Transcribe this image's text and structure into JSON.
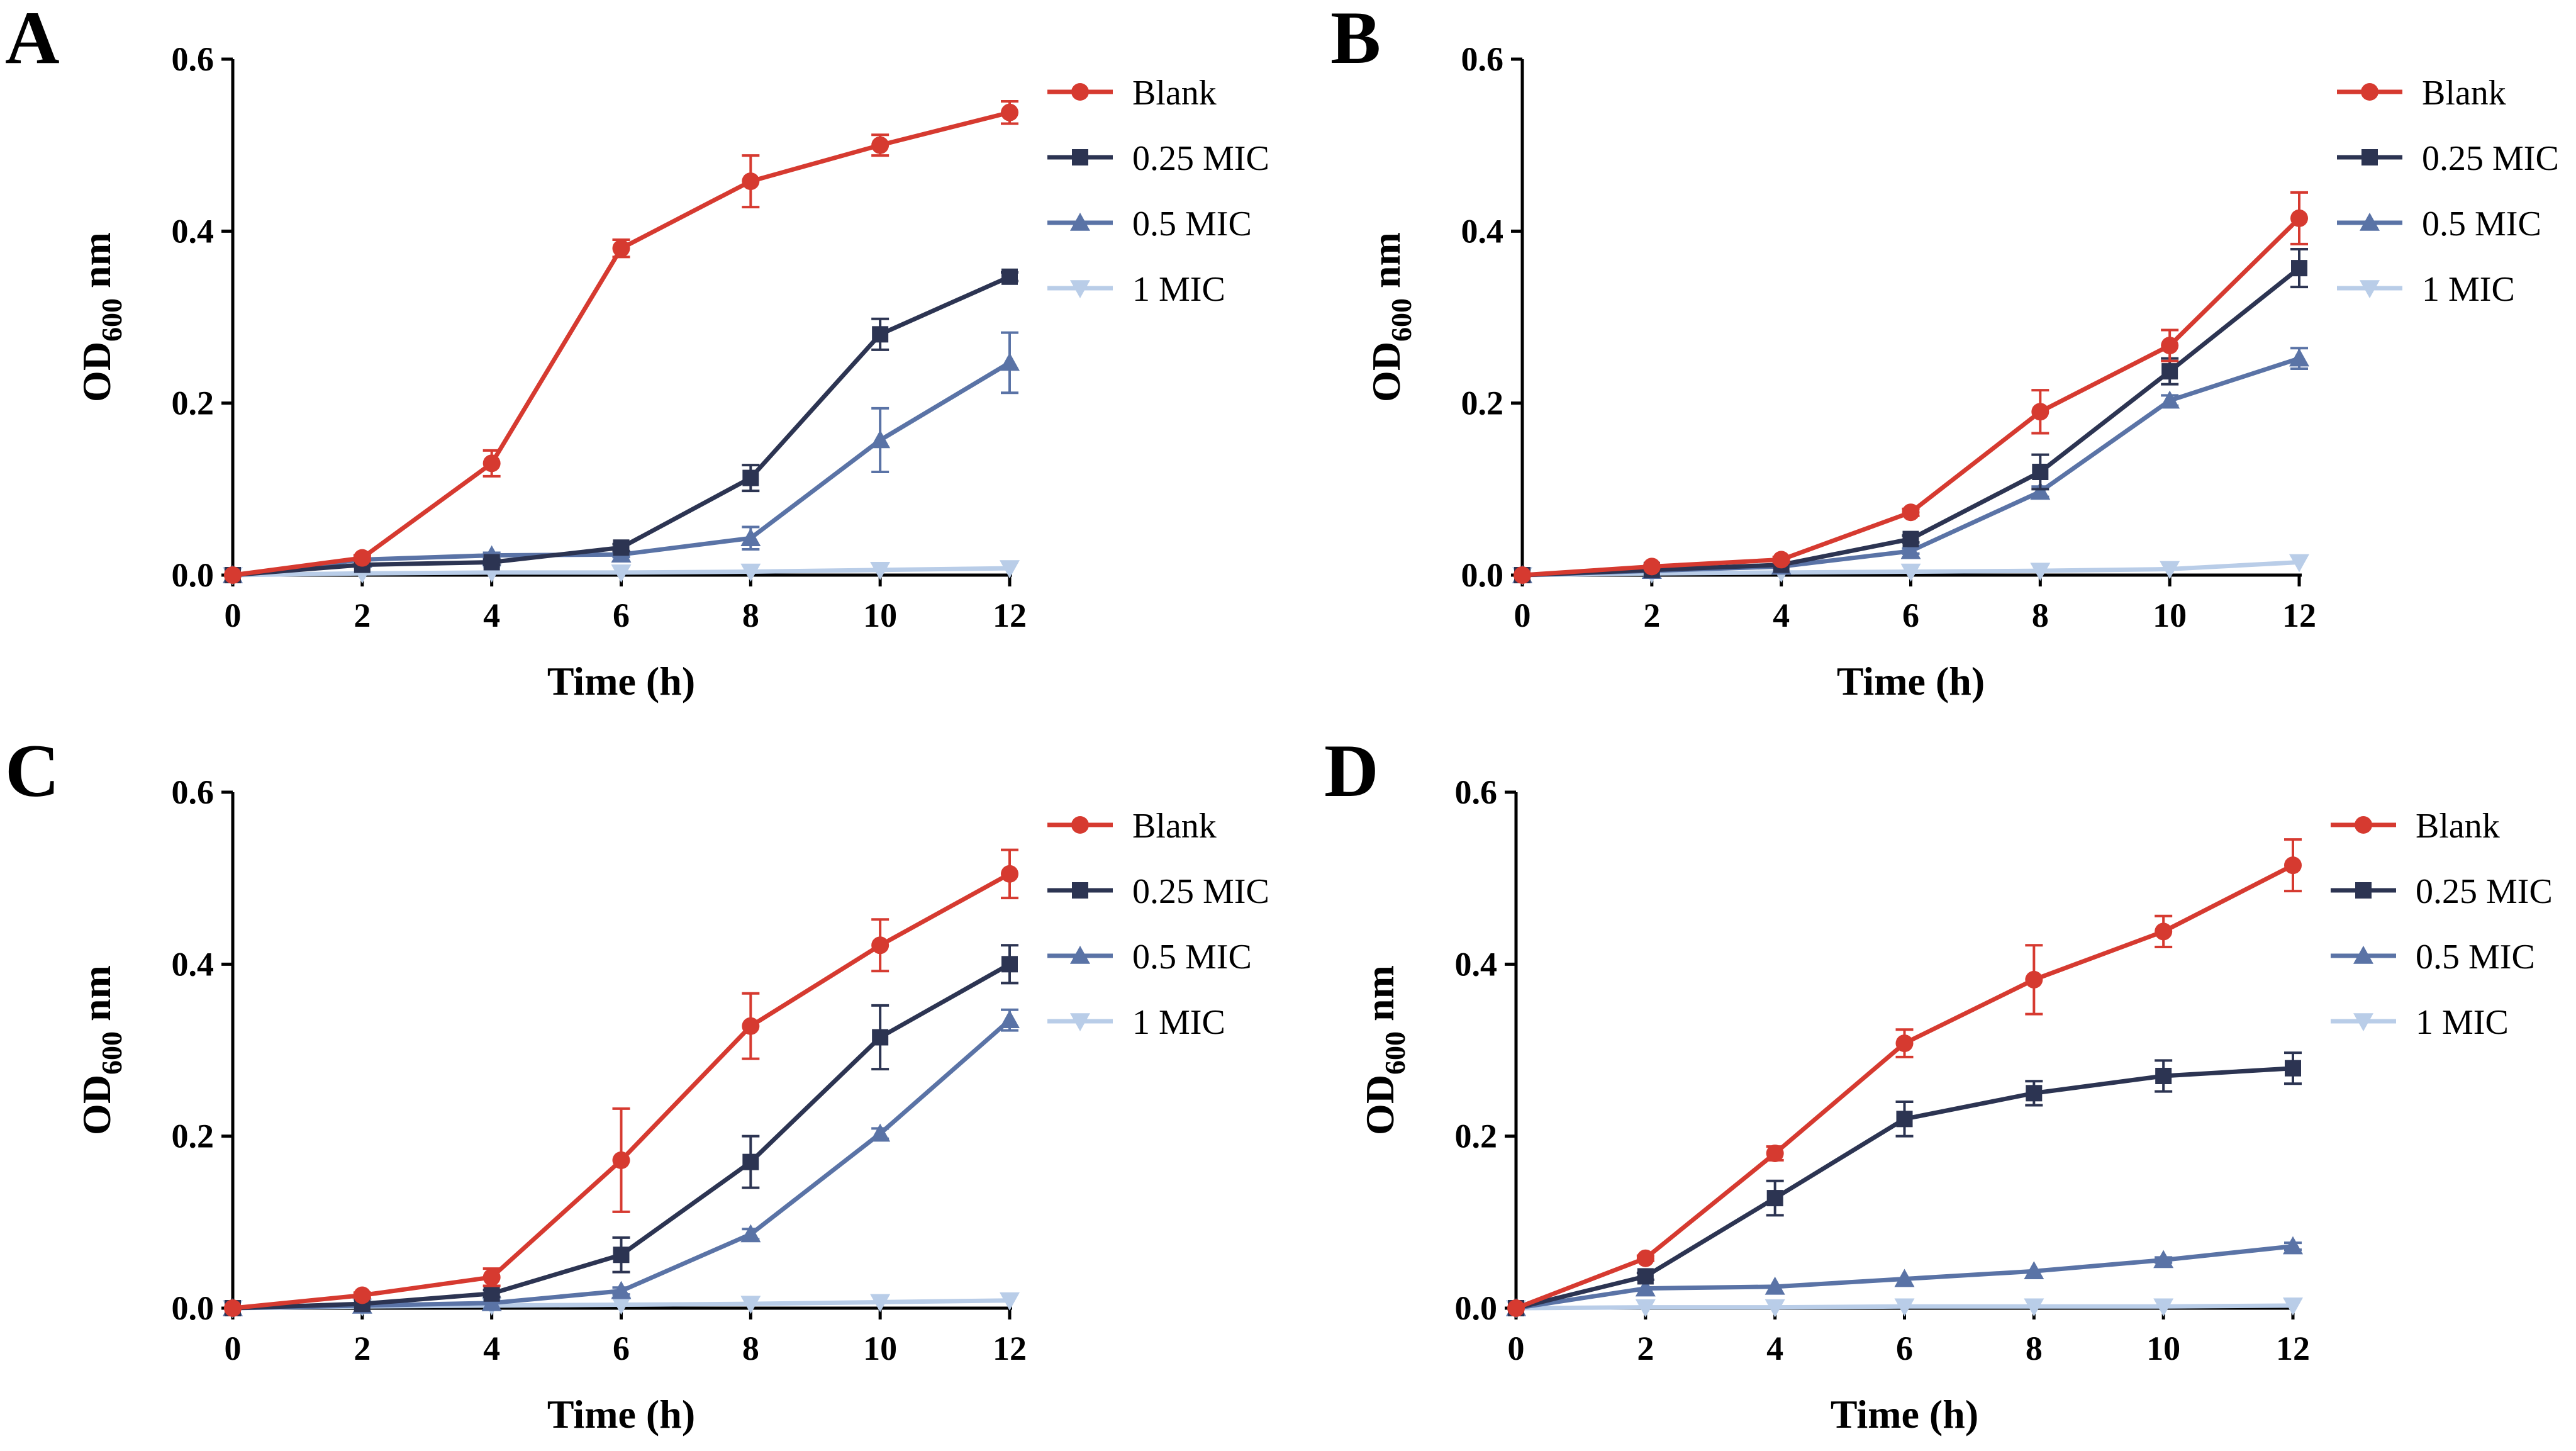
{
  "chart_data": [
    {
      "panel": "A",
      "type": "line",
      "xlabel": "Time (h)",
      "ylabel_main": "OD",
      "ylabel_sub": "600",
      "ylabel_unit": "nm",
      "x": [
        0,
        2,
        4,
        6,
        8,
        10,
        12
      ],
      "xticks": [
        "0",
        "2",
        "4",
        "6",
        "8",
        "10",
        "12"
      ],
      "yticks": [
        "0.0",
        "0.2",
        "0.4",
        "0.6"
      ],
      "xlim": [
        0,
        12
      ],
      "ylim": [
        0,
        0.6
      ],
      "series": [
        {
          "name": "Blank",
          "color": "#d63a30",
          "marker": "circle",
          "values": [
            0.0,
            0.02,
            0.13,
            0.38,
            0.458,
            0.5,
            0.538
          ],
          "errors": [
            0.0,
            0.003,
            0.015,
            0.01,
            0.03,
            0.012,
            0.013
          ]
        },
        {
          "name": "0.25 MIC",
          "color": "#2c3452",
          "marker": "square",
          "values": [
            0.0,
            0.012,
            0.015,
            0.032,
            0.113,
            0.28,
            0.347
          ],
          "errors": [
            0.0,
            0.002,
            0.003,
            0.004,
            0.015,
            0.018,
            0.005
          ]
        },
        {
          "name": "0.5 MIC",
          "color": "#5a73a6",
          "marker": "triangle",
          "values": [
            0.0,
            0.018,
            0.023,
            0.024,
            0.043,
            0.157,
            0.247
          ],
          "errors": [
            0.0,
            0.002,
            0.003,
            0.003,
            0.013,
            0.037,
            0.035
          ]
        },
        {
          "name": "1 MIC",
          "color": "#b9cde8",
          "marker": "triangle-down",
          "values": [
            0.0,
            0.002,
            0.003,
            0.003,
            0.004,
            0.006,
            0.008
          ],
          "errors": [
            0,
            0,
            0,
            0,
            0,
            0,
            0
          ]
        }
      ]
    },
    {
      "panel": "B",
      "type": "line",
      "xlabel": "Time (h)",
      "ylabel_main": "OD",
      "ylabel_sub": "600",
      "ylabel_unit": "nm",
      "x": [
        0,
        2,
        4,
        6,
        8,
        10,
        12
      ],
      "xticks": [
        "0",
        "2",
        "4",
        "6",
        "8",
        "10",
        "12"
      ],
      "yticks": [
        "0.0",
        "0.2",
        "0.4",
        "0.6"
      ],
      "xlim": [
        0,
        12
      ],
      "ylim": [
        0,
        0.6
      ],
      "series": [
        {
          "name": "Blank",
          "color": "#d63a30",
          "marker": "circle",
          "values": [
            0.0,
            0.01,
            0.018,
            0.073,
            0.19,
            0.267,
            0.415
          ],
          "errors": [
            0.0,
            0.002,
            0.003,
            0.004,
            0.025,
            0.018,
            0.03
          ]
        },
        {
          "name": "0.25 MIC",
          "color": "#2c3452",
          "marker": "square",
          "values": [
            0.0,
            0.006,
            0.012,
            0.042,
            0.12,
            0.237,
            0.357
          ],
          "errors": [
            0.0,
            0.002,
            0.002,
            0.004,
            0.02,
            0.015,
            0.022
          ]
        },
        {
          "name": "0.5 MIC",
          "color": "#5a73a6",
          "marker": "triangle",
          "values": [
            0.0,
            0.005,
            0.01,
            0.028,
            0.097,
            0.203,
            0.252
          ],
          "errors": [
            0.0,
            0.001,
            0.002,
            0.003,
            0.006,
            0.006,
            0.012
          ]
        },
        {
          "name": "1 MIC",
          "color": "#b9cde8",
          "marker": "triangle-down",
          "values": [
            0.0,
            0.002,
            0.003,
            0.004,
            0.005,
            0.007,
            0.015
          ],
          "errors": [
            0,
            0,
            0,
            0,
            0,
            0,
            0
          ]
        }
      ]
    },
    {
      "panel": "C",
      "type": "line",
      "xlabel": "Time (h)",
      "ylabel_main": "OD",
      "ylabel_sub": "600",
      "ylabel_unit": "nm",
      "x": [
        0,
        2,
        4,
        6,
        8,
        10,
        12
      ],
      "xticks": [
        "0",
        "2",
        "4",
        "6",
        "8",
        "10",
        "12"
      ],
      "yticks": [
        "0.0",
        "0.2",
        "0.4",
        "0.6"
      ],
      "xlim": [
        0,
        12
      ],
      "ylim": [
        0,
        0.6
      ],
      "series": [
        {
          "name": "Blank",
          "color": "#d63a30",
          "marker": "circle",
          "values": [
            0.0,
            0.015,
            0.036,
            0.172,
            0.328,
            0.422,
            0.505
          ],
          "errors": [
            0.0,
            0.003,
            0.01,
            0.06,
            0.038,
            0.03,
            0.028
          ]
        },
        {
          "name": "0.25 MIC",
          "color": "#2c3452",
          "marker": "square",
          "values": [
            0.0,
            0.005,
            0.017,
            0.062,
            0.17,
            0.315,
            0.4
          ],
          "errors": [
            0.0,
            0.002,
            0.004,
            0.02,
            0.03,
            0.037,
            0.022
          ]
        },
        {
          "name": "0.5 MIC",
          "color": "#5a73a6",
          "marker": "triangle",
          "values": [
            0.0,
            0.003,
            0.006,
            0.02,
            0.086,
            0.203,
            0.335
          ],
          "errors": [
            0.0,
            0.001,
            0.002,
            0.004,
            0.006,
            0.006,
            0.012
          ]
        },
        {
          "name": "1 MIC",
          "color": "#b9cde8",
          "marker": "triangle-down",
          "values": [
            0.0,
            0.002,
            0.003,
            0.004,
            0.005,
            0.007,
            0.009
          ],
          "errors": [
            0,
            0,
            0,
            0,
            0,
            0,
            0
          ]
        }
      ]
    },
    {
      "panel": "D",
      "type": "line",
      "xlabel": "Time (h)",
      "ylabel_main": "OD",
      "ylabel_sub": "600",
      "ylabel_unit": "nm",
      "x": [
        0,
        2,
        4,
        6,
        8,
        10,
        12
      ],
      "xticks": [
        "0",
        "2",
        "4",
        "6",
        "8",
        "10",
        "12"
      ],
      "yticks": [
        "0.0",
        "0.2",
        "0.4",
        "0.6"
      ],
      "xlim": [
        0,
        12
      ],
      "ylim": [
        0,
        0.6
      ],
      "series": [
        {
          "name": "Blank",
          "color": "#d63a30",
          "marker": "circle",
          "values": [
            0.0,
            0.058,
            0.18,
            0.308,
            0.382,
            0.438,
            0.515
          ],
          "errors": [
            0.0,
            0.003,
            0.008,
            0.016,
            0.04,
            0.018,
            0.03
          ]
        },
        {
          "name": "0.25 MIC",
          "color": "#2c3452",
          "marker": "square",
          "values": [
            0.0,
            0.037,
            0.128,
            0.22,
            0.25,
            0.27,
            0.279
          ],
          "errors": [
            0.0,
            0.004,
            0.02,
            0.02,
            0.014,
            0.018,
            0.018
          ]
        },
        {
          "name": "0.5 MIC",
          "color": "#5a73a6",
          "marker": "triangle",
          "values": [
            0.0,
            0.023,
            0.025,
            0.034,
            0.043,
            0.056,
            0.072
          ],
          "errors": [
            0.0,
            0.002,
            0.002,
            0.002,
            0.002,
            0.003,
            0.004
          ]
        },
        {
          "name": "1 MIC",
          "color": "#b9cde8",
          "marker": "triangle-down",
          "values": [
            0.0,
            0.001,
            0.001,
            0.002,
            0.002,
            0.002,
            0.003
          ],
          "errors": [
            0,
            0,
            0,
            0,
            0,
            0,
            0
          ]
        }
      ]
    }
  ]
}
